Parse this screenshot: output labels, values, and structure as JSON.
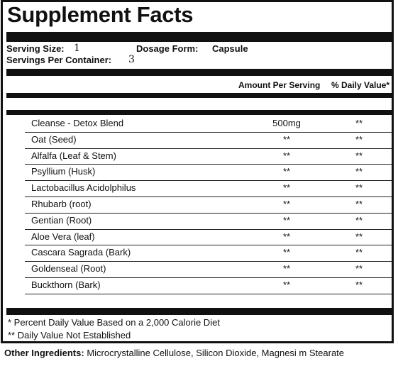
{
  "title": "Supplement Facts",
  "serving": {
    "size_label": "Serving Size:",
    "size_value": "1",
    "form_label": "Dosage Form:",
    "form_value": "Capsule",
    "per_container_label": "Servings Per Container:",
    "per_container_value": "3"
  },
  "columns": {
    "amount": "Amount Per Serving",
    "daily_value": "% Daily Value*"
  },
  "ingredients": [
    {
      "name": "Cleanse - Detox Blend",
      "amount": "500mg",
      "dv": "**"
    },
    {
      "name": "Oat (Seed)",
      "amount": "**",
      "dv": "**"
    },
    {
      "name": "Alfalfa (Leaf & Stem)",
      "amount": "**",
      "dv": "**"
    },
    {
      "name": "Psyllium (Husk)",
      "amount": "**",
      "dv": "**"
    },
    {
      "name": "Lactobacillus Acidolphilus",
      "amount": "**",
      "dv": "**"
    },
    {
      "name": "Rhubarb (root)",
      "amount": "**",
      "dv": "**"
    },
    {
      "name": "Gentian  (Root)",
      "amount": "**",
      "dv": "**"
    },
    {
      "name": "Aloe Vera (leaf)",
      "amount": "**",
      "dv": "**"
    },
    {
      "name": "Cascara Sagrada (Bark)",
      "amount": "**",
      "dv": "**"
    },
    {
      "name": "Goldenseal (Root)",
      "amount": "**",
      "dv": "**"
    },
    {
      "name": "Buckthorn (Bark)",
      "amount": "**",
      "dv": "**"
    }
  ],
  "footnotes": {
    "percent_dv": "* Percent Daily Value Based on a 2,000 Calorie Diet",
    "not_established": "** Daily Value Not Established"
  },
  "other_ingredients": {
    "label": "Other Ingredients:",
    "value": "Microcrystalline Cellulose, Silicon Dioxide, Magnesi  m Stearate"
  }
}
